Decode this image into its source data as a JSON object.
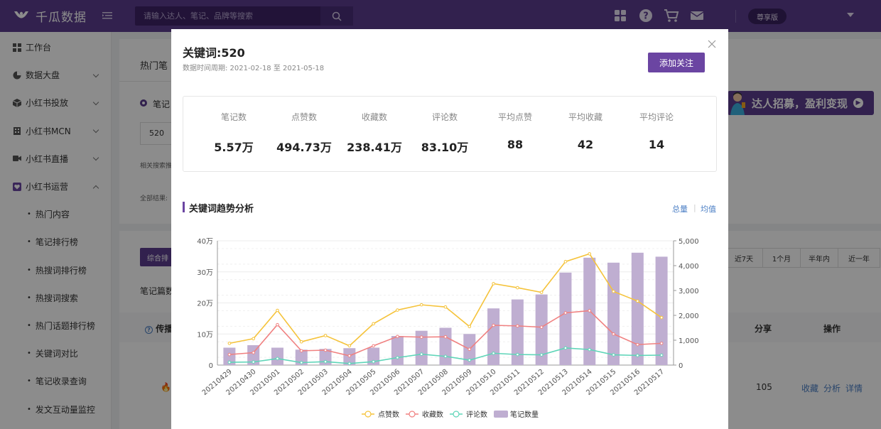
{
  "app": {
    "brand": "千瓜数据",
    "search_placeholder": "请输入达人、笔记、品牌等搜索",
    "vip_label": "尊享版",
    "colors": {
      "brand": "#5b3d8f",
      "accent": "#6b45a2"
    }
  },
  "sidebar": {
    "items": [
      {
        "label": "工作台",
        "icon": "grid-icon",
        "expandable": false
      },
      {
        "label": "数据大盘",
        "icon": "pie-chart-icon",
        "expandable": true
      },
      {
        "label": "小红书投放",
        "icon": "cube-icon",
        "expandable": true
      },
      {
        "label": "小红书MCN",
        "icon": "building-icon",
        "expandable": true
      },
      {
        "label": "小红书直播",
        "icon": "video-icon",
        "expandable": true
      },
      {
        "label": "小红书运营",
        "icon": "heart-badge-icon",
        "expandable": true,
        "expanded": true
      }
    ],
    "sub_items": [
      "热门内容",
      "笔记排行榜",
      "热搜词排行榜",
      "热搜词搜索",
      "热门话题排行榜",
      "关键词对比",
      "笔记收录查询",
      "发文互动量监控"
    ]
  },
  "background": {
    "tab_label": "热门笔",
    "radio_label": "笔记",
    "input_value": "520",
    "related_label": "相关搜索推",
    "all_results_label": "全部结果:",
    "sort_label": "综合排",
    "note_count_label": "笔记篇数",
    "table_first_col": "传播",
    "banner_text": "达人招募，盈利变现",
    "range_tabs": [
      "近7天",
      "1个月",
      "半年内",
      "近一年"
    ],
    "table_headers": [
      "分享",
      "操作"
    ],
    "row_share": "105",
    "row_actions": [
      "收藏",
      "分析",
      "详情"
    ]
  },
  "modal": {
    "title": "关键词:520",
    "period": "数据时间周期: 2021-02-18 至 2021-05-18",
    "follow_button": "添加关注",
    "stats": [
      {
        "label": "笔记数",
        "value": "5.57万"
      },
      {
        "label": "点赞数",
        "value": "494.73万"
      },
      {
        "label": "收藏数",
        "value": "238.41万"
      },
      {
        "label": "评论数",
        "value": "83.10万"
      },
      {
        "label": "平均点赞",
        "value": "88"
      },
      {
        "label": "平均收藏",
        "value": "42"
      },
      {
        "label": "平均评论",
        "value": "14"
      }
    ],
    "trend_title": "关键词趋势分析",
    "toggle_total": "总量",
    "toggle_avg": "均值"
  },
  "chart_data": {
    "type": "bar+line",
    "categories": [
      "20210429",
      "20210430",
      "20210501",
      "20210502",
      "20210503",
      "20210504",
      "20210505",
      "20210506",
      "20210507",
      "20210508",
      "20210509",
      "20210510",
      "20210511",
      "20210512",
      "20210513",
      "20210514",
      "20210515",
      "20210516",
      "20210517"
    ],
    "y_left_ticks": [
      "0",
      "10万",
      "20万",
      "30万",
      "40万"
    ],
    "y_left_range": [
      0,
      400000
    ],
    "y_right_ticks": [
      "0",
      "1,000",
      "2,000",
      "3,000",
      "4,000",
      "5,000"
    ],
    "y_right_range": [
      0,
      5000
    ],
    "series": [
      {
        "name": "点赞数",
        "type": "line",
        "axis": "left",
        "color": "#f5c33b",
        "values": [
          70000,
          85000,
          176000,
          75000,
          95000,
          62000,
          133000,
          177000,
          194000,
          187000,
          124000,
          262000,
          249000,
          234000,
          333000,
          358000,
          237000,
          206000,
          153000
        ]
      },
      {
        "name": "收藏数",
        "type": "line",
        "axis": "left",
        "color": "#f08080",
        "values": [
          34000,
          40000,
          130000,
          46000,
          48000,
          30000,
          62000,
          92000,
          90000,
          91000,
          51000,
          128000,
          126000,
          122000,
          168000,
          175000,
          100000,
          66000,
          70000
        ]
      },
      {
        "name": "评论数",
        "type": "line",
        "axis": "left",
        "color": "#5ed5b8",
        "values": [
          9000,
          10000,
          21000,
          8000,
          11000,
          5000,
          11000,
          24000,
          35000,
          28000,
          16000,
          38000,
          34000,
          33000,
          55000,
          50000,
          33000,
          31000,
          32000
        ]
      },
      {
        "name": "笔记数量",
        "type": "bar",
        "axis": "right",
        "color": "#bfaed1",
        "values": [
          700,
          800,
          700,
          620,
          650,
          680,
          700,
          1170,
          1380,
          1500,
          1250,
          2280,
          2640,
          2840,
          3720,
          4320,
          4120,
          4520,
          4360
        ]
      }
    ],
    "legend": [
      "点赞数",
      "收藏数",
      "评论数",
      "笔记数量"
    ],
    "legend_position": "bottom"
  }
}
